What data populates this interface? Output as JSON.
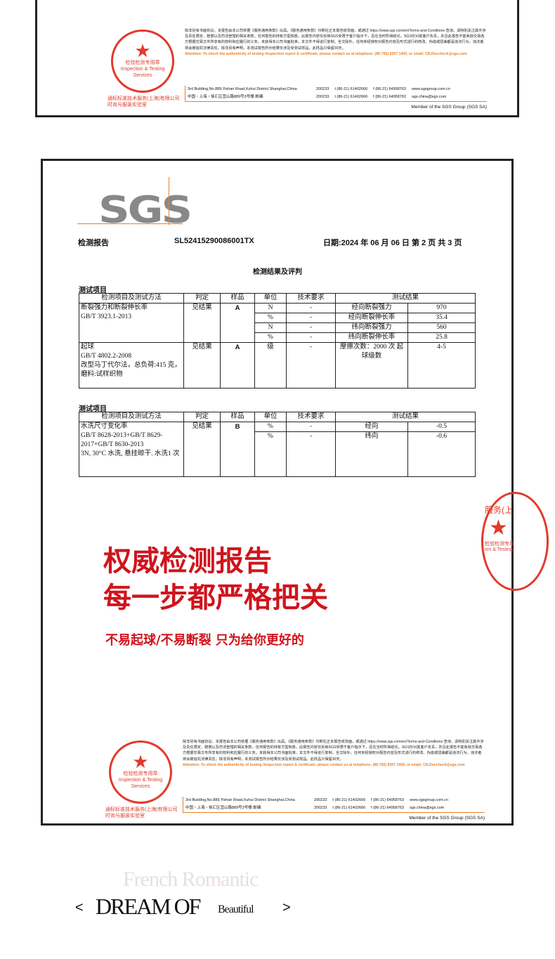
{
  "footer": {
    "stamp_text": "检验检测专用章",
    "stamp_en": "Inspection & Testing Services",
    "stamp_company": "通标标准技术服务(上海)有限公司",
    "stamp_company2": "时尚与服装实验室",
    "legal": "除非另有书面协议，本报告由本公司依据《服务通用条款》出具。《服务通用条款》印刷在正本报告纸背面，或通过 https://www.sgs.com/en/Terms-and-Conditions 查询，请特别关注其中涉及责任限定、赔偿以及司法管辖的相关条款。任何报告的持有方需知悉，此报告内容仅反映SGS受限于客户指示下，且在当时所得结论。SGS仅对其客户负责，并且此报告不能免除交易各方根据交易文件所享有的权利和应履行的义务。未获得本公司书面批准，本文件不得进行复制，全文除外。任何未经授权对报告内容及形式进行的修改、伪造或扭曲都是违法行为，违法者将会被追究法律责任。除非另有声明，本测试报告所示结果仅涉及受测试样品，此样品只保留30天。",
    "attention": "Attention: To check the authenticity of testing /inspection report & certificate, please contact us at telephone: (86-755) 8307 1443, or email: CN.Doccheck@sgs.com",
    "addr_en": "3rd Building,No.889,Yishan Road,Xuhui District Shanghai,China",
    "addr_cn": "中国・上海・徐汇区宜山路889号3号楼  邮编:",
    "zip": "200233",
    "tel": "t (86-21) 61402666",
    "fax": "f (86-21) 64958763",
    "web": "www.sgsgroup.com.cn",
    "email": "sgs.china@sgs.com",
    "member": "Member of the SGS Group (SGS SA)"
  },
  "report": {
    "logo": "SGS",
    "title": "检测报告",
    "number": "SL52415290086001TX",
    "date": "日期:2024 年 06 月 06 日   第 2 页 共 3 页",
    "heading": "检测结果及评判",
    "section": "测试项目",
    "columns": [
      "检测项目及测试方法",
      "判定",
      "样品",
      "单位",
      "技术要求",
      "测试结果"
    ],
    "table1": {
      "item1": {
        "name": "断裂强力和断裂伸长率",
        "method": "GB/T 3923.1-2013",
        "judge": "见结果",
        "sample": "A",
        "rows": [
          {
            "unit": "N",
            "req": "-",
            "label": "经向断裂强力",
            "value": "970"
          },
          {
            "unit": "%",
            "req": "-",
            "label": "经向断裂伸长率",
            "value": "35.4"
          },
          {
            "unit": "N",
            "req": "-",
            "label": "纬向断裂强力",
            "value": "560"
          },
          {
            "unit": "%",
            "req": "-",
            "label": "纬向断裂伸长率",
            "value": "25.8"
          }
        ]
      },
      "item2": {
        "name": "起球",
        "method": "GB/T 4802.2-2008",
        "detail": "改型马丁代尔法，总负荷:415 克，磨料:试样织物",
        "judge": "见结果",
        "sample": "A",
        "unit": "级",
        "req": "-",
        "label": "摩擦次数：2000 次 起球级数",
        "value": "4-5"
      }
    },
    "table2": {
      "name": "水洗尺寸变化率",
      "method": "GB/T 8628-2013+GB/T 8629-2017+GB/T 8630-2013",
      "detail": "3N, 30°C 水洗, 悬挂晾干. 水洗1 次",
      "judge": "见结果",
      "sample": "B",
      "rows": [
        {
          "unit": "%",
          "req": "-",
          "label": "经向",
          "value": "-0.5"
        },
        {
          "unit": "%",
          "req": "-",
          "label": "纬向",
          "value": "-0.6"
        }
      ]
    }
  },
  "promo": {
    "line1": "权威检测报告",
    "line2": "每一步都严格把关",
    "line3": "不易起球/不易断裂 只为给你更好的",
    "stamp_partial": "服务(上",
    "stamp_partial2": "检验检测专用",
    "stamp_partial3": "ion & Testing"
  },
  "banner": {
    "back": "French Romantic",
    "left": "<",
    "main": "DREAM OF",
    "small": "Beautiful",
    "right": ">"
  },
  "colors": {
    "accent_red": "#d0141c",
    "sgs_orange": "#f07d20"
  }
}
